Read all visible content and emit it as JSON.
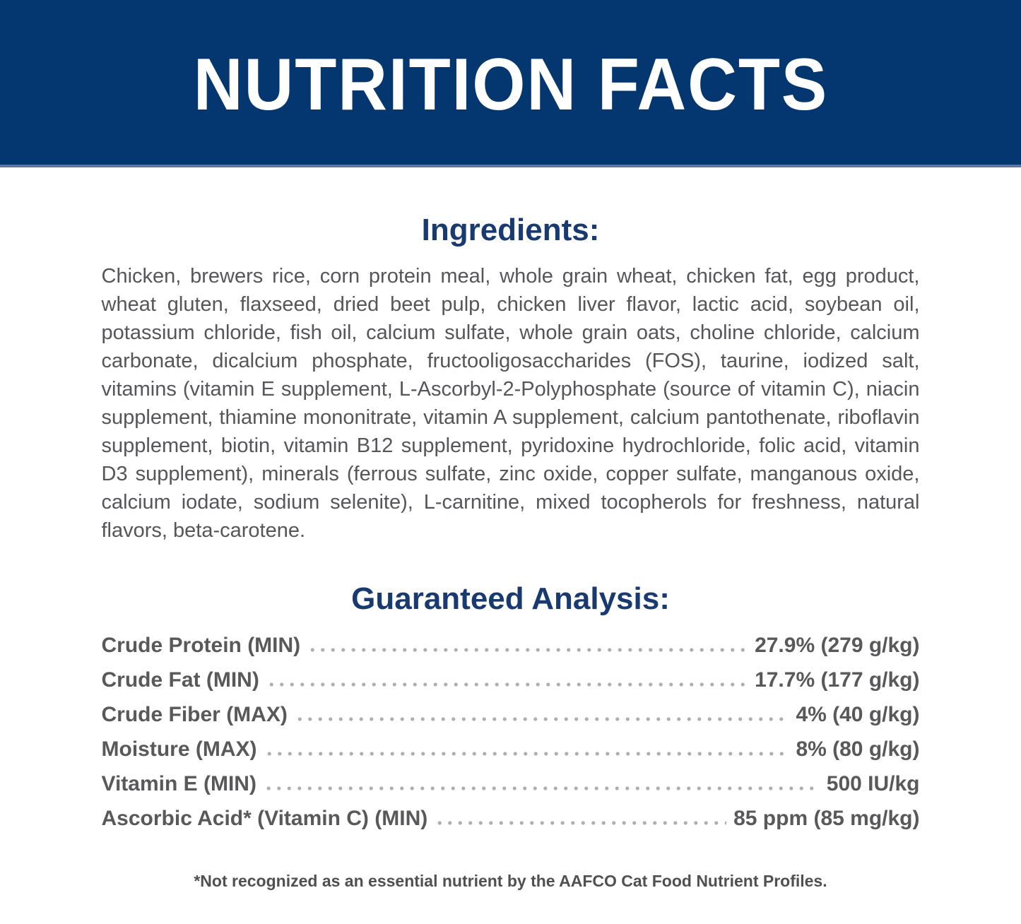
{
  "header": {
    "title": "NUTRITION FACTS"
  },
  "ingredients": {
    "heading": "Ingredients:",
    "text": "Chicken, brewers rice, corn protein meal, whole grain wheat, chicken fat, egg product, wheat gluten, flaxseed, dried beet pulp, chicken liver flavor, lactic acid, soybean oil, potassium chloride, fish oil, calcium sulfate, whole grain oats, choline chloride, calcium carbonate, dicalcium phosphate, fructooligosaccharides (FOS), taurine, iodized salt, vitamins (vitamin E supplement, L-Ascorbyl-2-Polyphosphate (source of vitamin C), niacin supplement, thiamine mononitrate, vitamin A supplement, calcium pantothenate, riboflavin supplement, biotin, vitamin B12 supplement, pyridoxine hydrochloride, folic acid, vitamin D3 supplement), minerals (ferrous sulfate, zinc oxide, copper sulfate, manganous oxide, calcium iodate, sodium selenite), L-carnitine, mixed tocopherols for freshness, natural flavors, beta-carotene."
  },
  "guaranteed_analysis": {
    "heading": "Guaranteed Analysis:",
    "rows": [
      {
        "label": "Crude Protein (MIN)",
        "value": "27.9% (279 g/kg)"
      },
      {
        "label": "Crude Fat (MIN)",
        "value": "17.7% (177 g/kg)"
      },
      {
        "label": "Crude Fiber (MAX)",
        "value": "4% (40 g/kg)"
      },
      {
        "label": "Moisture (MAX)",
        "value": "8% (80 g/kg)"
      },
      {
        "label": "Vitamin E (MIN)",
        "value": "500 IU/kg"
      },
      {
        "label": "Ascorbic Acid* (Vitamin C) (MIN)",
        "value": "85 ppm (85 mg/kg)"
      }
    ]
  },
  "footnote": "*Not recognized as an essential nutrient by the AAFCO Cat Food Nutrient Profiles.",
  "colors": {
    "band_background": "#04376f",
    "band_edge": "#64739b",
    "title_text": "#ffffff",
    "heading_blue": "#183a70",
    "body_gray": "#55565a",
    "row_gray": "#59595b",
    "dots_gray": "#aeaeb0"
  }
}
